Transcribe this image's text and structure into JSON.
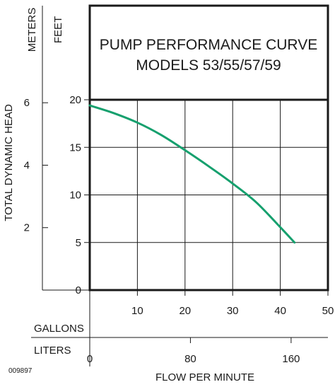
{
  "chart_data": {
    "type": "line",
    "title_lines": [
      "PUMP PERFORMANCE CURVE",
      "MODELS 53/55/57/59"
    ],
    "xlabel": "FLOW PER MINUTE",
    "ylabel": "TOTAL DYNAMIC HEAD",
    "code": "009897",
    "y_axes": {
      "feet": {
        "label": "FEET",
        "ticks": [
          "0",
          "5",
          "10",
          "15",
          "20"
        ],
        "ylim": [
          0,
          20
        ]
      },
      "meters": {
        "label": "METERS",
        "ticks": [
          "2",
          "4",
          "6"
        ]
      }
    },
    "x_axes": {
      "gallons": {
        "label": "GALLONS",
        "ticks": [
          "10",
          "20",
          "30",
          "40",
          "50"
        ],
        "xlim": [
          0,
          50
        ]
      },
      "liters": {
        "label": "LITERS",
        "ticks": [
          "0",
          "80",
          "160"
        ]
      }
    },
    "grid": true,
    "line_color": "#16a06e",
    "series": [
      {
        "x": [
          0,
          5,
          10,
          15,
          20,
          25,
          30,
          35,
          40,
          43
        ],
        "y": [
          19.4,
          18.6,
          17.6,
          16.3,
          14.7,
          13.0,
          11.2,
          9.2,
          6.6,
          5.0
        ]
      }
    ]
  }
}
